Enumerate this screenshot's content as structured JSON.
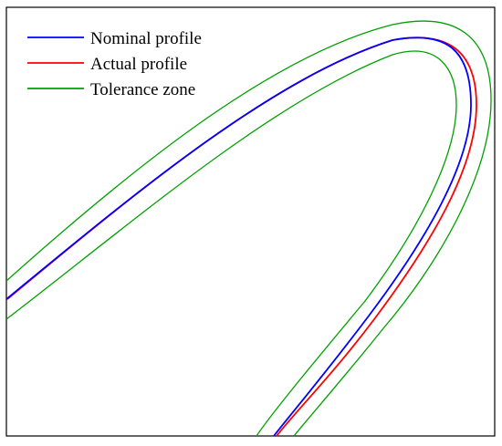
{
  "legend": [
    {
      "label": "Nominal profile",
      "color": "#0000ff"
    },
    {
      "label": "Actual profile",
      "color": "#ff0000"
    },
    {
      "label": "Tolerance zone",
      "color": "#00a000"
    }
  ],
  "colors": {
    "frame": "#000000",
    "nominal": "#0000ff",
    "actual": "#ff0000",
    "tolerance": "#00a000"
  }
}
